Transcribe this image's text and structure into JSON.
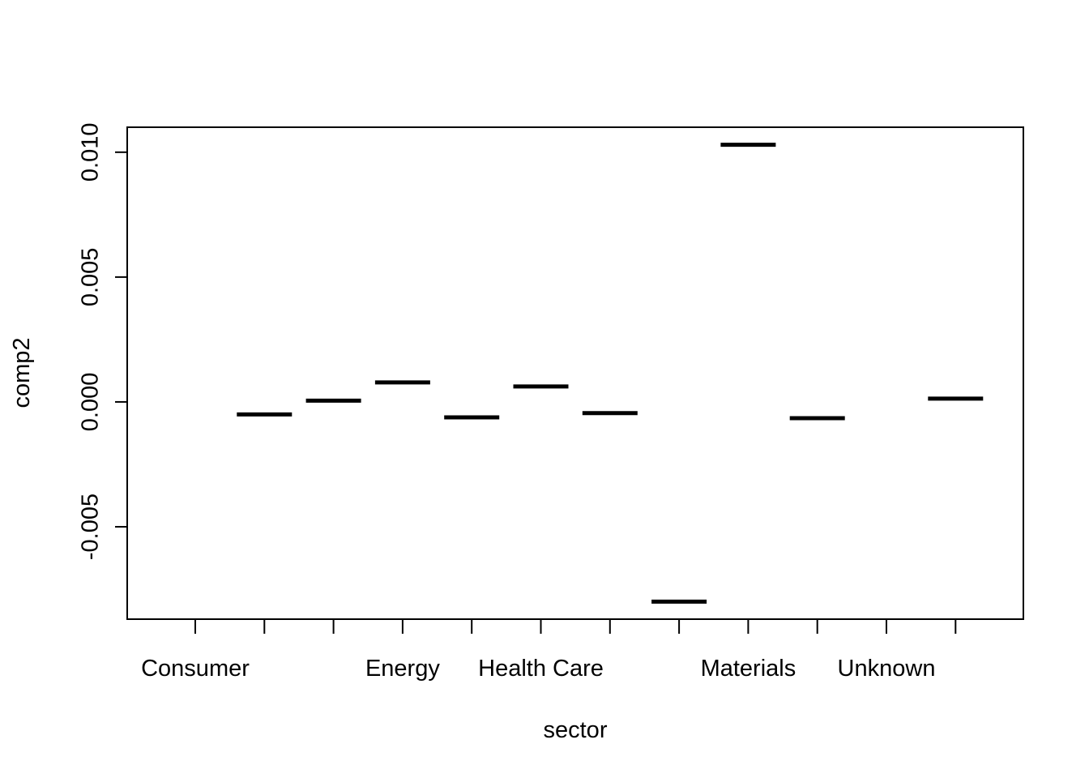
{
  "chart_data": {
    "type": "bar",
    "style": "stripchart-median",
    "xlabel": "sector",
    "ylabel": "comp2",
    "ylim": [
      -0.0087,
      0.011
    ],
    "yticks": [
      -0.005,
      0.0,
      0.005,
      0.01
    ],
    "ytick_labels": [
      "-0.005",
      "0.000",
      "0.005",
      "0.010"
    ],
    "category_count": 12,
    "categories": [
      "Consumer",
      "",
      "",
      "Energy",
      "",
      "Health Care",
      "",
      "",
      "Materials",
      "",
      "Unknown",
      ""
    ],
    "values": [
      null,
      -0.0005,
      5e-05,
      0.00078,
      -0.00062,
      0.00062,
      -0.00045,
      -0.008,
      0.0103,
      -0.00065,
      null,
      0.00013
    ],
    "grid": false,
    "legend": "none"
  }
}
